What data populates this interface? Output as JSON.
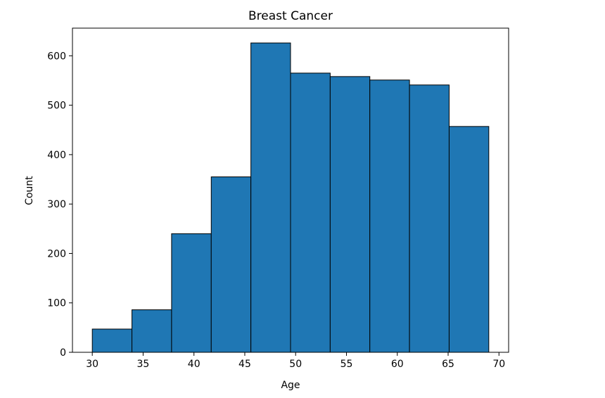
{
  "chart_data": {
    "type": "bar",
    "subtype": "histogram",
    "title": "Breast Cancer",
    "xlabel": "Age",
    "ylabel": "Count",
    "xlim": [
      28.05,
      70.95
    ],
    "ylim": [
      0,
      656
    ],
    "xticks": [
      30,
      35,
      40,
      45,
      50,
      55,
      60,
      65,
      70
    ],
    "yticks": [
      0,
      100,
      200,
      300,
      400,
      500,
      600
    ],
    "bin_edges": [
      30,
      33.9,
      37.8,
      41.7,
      45.6,
      49.5,
      53.4,
      57.3,
      61.2,
      65.1,
      69
    ],
    "values": [
      47,
      86,
      240,
      355,
      626,
      565,
      558,
      551,
      541,
      457
    ],
    "bar_color": "#1f77b4",
    "edge_color": "#000000",
    "grid": false
  }
}
